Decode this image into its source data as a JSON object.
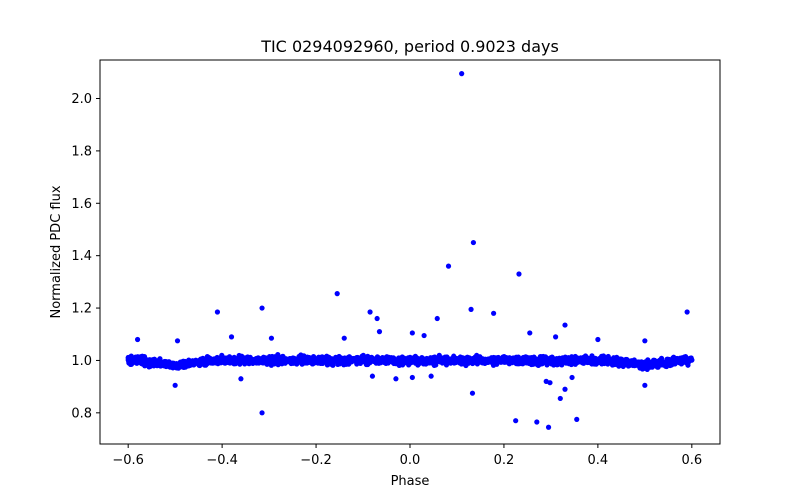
{
  "chart_data": {
    "type": "scatter",
    "title": "TIC 0294092960, period 0.9023 days",
    "xlabel": "Phase",
    "ylabel": "Normalized PDC flux",
    "xlim": [
      -0.66,
      0.66
    ],
    "ylim": [
      0.681,
      2.147
    ],
    "xticks": [
      -0.6,
      -0.4,
      -0.2,
      0.0,
      0.2,
      0.4,
      0.6
    ],
    "xtick_labels": [
      "−0.6",
      "−0.4",
      "−0.2",
      "0.0",
      "0.2",
      "0.4",
      "0.6"
    ],
    "yticks": [
      0.8,
      1.0,
      1.2,
      1.4,
      1.6,
      1.8,
      2.0
    ],
    "ytick_labels": [
      "0.8",
      "1.0",
      "1.2",
      "1.4",
      "1.6",
      "1.8",
      "2.0"
    ],
    "series": [
      {
        "name": "PDC flux",
        "color": "#0000ff",
        "x_range": [
          -0.6,
          0.6
        ],
        "baseline": 1.0,
        "scatter_amplitude": 0.025,
        "outliers": [
          {
            "x": 0.11,
            "y": 2.095
          },
          {
            "x": 0.135,
            "y": 1.45
          },
          {
            "x": 0.082,
            "y": 1.36
          },
          {
            "x": 0.232,
            "y": 1.33
          },
          {
            "x": -0.155,
            "y": 1.255
          },
          {
            "x": -0.315,
            "y": 1.2
          },
          {
            "x": 0.13,
            "y": 1.195
          },
          {
            "x": -0.41,
            "y": 1.185
          },
          {
            "x": -0.085,
            "y": 1.185
          },
          {
            "x": 0.178,
            "y": 1.18
          },
          {
            "x": 0.59,
            "y": 1.185
          },
          {
            "x": -0.07,
            "y": 1.16
          },
          {
            "x": 0.058,
            "y": 1.16
          },
          {
            "x": 0.33,
            "y": 1.135
          },
          {
            "x": 0.005,
            "y": 1.105
          },
          {
            "x": 0.255,
            "y": 1.105
          },
          {
            "x": -0.065,
            "y": 1.11
          },
          {
            "x": -0.38,
            "y": 1.09
          },
          {
            "x": -0.295,
            "y": 1.085
          },
          {
            "x": 0.03,
            "y": 1.095
          },
          {
            "x": 0.31,
            "y": 1.09
          },
          {
            "x": -0.14,
            "y": 1.085
          },
          {
            "x": 0.5,
            "y": 1.075
          },
          {
            "x": -0.495,
            "y": 1.075
          },
          {
            "x": -0.58,
            "y": 1.08
          },
          {
            "x": 0.4,
            "y": 1.08
          },
          {
            "x": -0.315,
            "y": 0.8
          },
          {
            "x": 0.133,
            "y": 0.875
          },
          {
            "x": 0.225,
            "y": 0.77
          },
          {
            "x": 0.27,
            "y": 0.765
          },
          {
            "x": 0.295,
            "y": 0.745
          },
          {
            "x": 0.355,
            "y": 0.775
          },
          {
            "x": 0.32,
            "y": 0.855
          },
          {
            "x": 0.33,
            "y": 0.89
          },
          {
            "x": 0.29,
            "y": 0.92
          },
          {
            "x": 0.298,
            "y": 0.915
          },
          {
            "x": -0.5,
            "y": 0.905
          },
          {
            "x": 0.005,
            "y": 0.935
          },
          {
            "x": -0.03,
            "y": 0.93
          },
          {
            "x": 0.045,
            "y": 0.94
          },
          {
            "x": -0.08,
            "y": 0.94
          },
          {
            "x": 0.345,
            "y": 0.935
          },
          {
            "x": 0.5,
            "y": 0.905
          },
          {
            "x": -0.36,
            "y": 0.93
          }
        ]
      }
    ]
  }
}
